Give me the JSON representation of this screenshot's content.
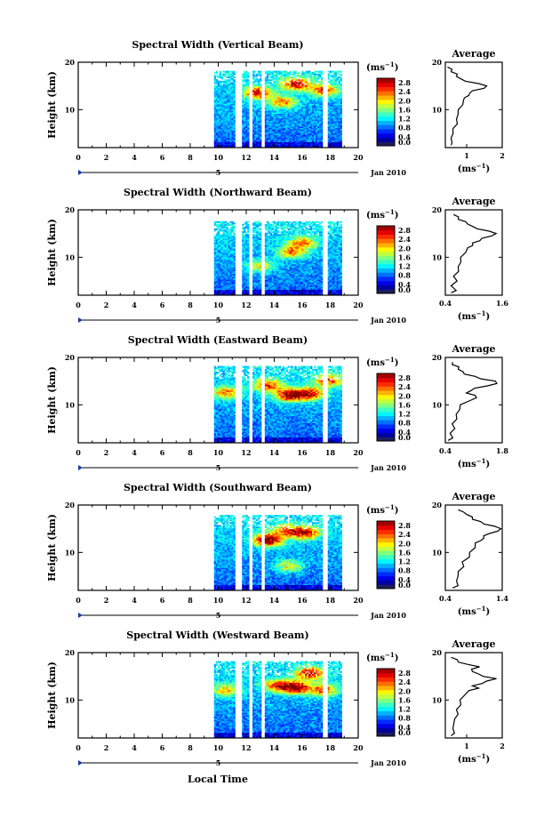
{
  "figure": {
    "xlabel": "Local Time",
    "date_label": "Jan 2010",
    "day_marker": "5",
    "colorbar_unit": "(ms",
    "colorbar_unit_exp": "−1",
    "colorbar_ticks": [
      "0.0",
      "0.4",
      "0.8",
      "1.2",
      "1.6",
      "2.0",
      "2.4",
      "2.8"
    ],
    "average_title": "Average",
    "average_unit": "(ms",
    "average_unit_exp": "−1"
  },
  "chart_data": [
    {
      "type": "heatmap",
      "title": "Spectral Width (Vertical Beam)",
      "ylabel": "Height (km)",
      "xlim": [
        0,
        20
      ],
      "ylim": [
        2,
        20
      ],
      "x_ticks": [
        "0",
        "2",
        "4",
        "6",
        "8",
        "10",
        "12",
        "14",
        "16",
        "18",
        "20"
      ],
      "y_ticks": [
        10,
        20
      ],
      "data_x_range": [
        9.7,
        18.8
      ],
      "data_y_top": 18,
      "gaps": [
        [
          11.2,
          11.7
        ],
        [
          12.2,
          12.4
        ],
        [
          13.0,
          13.3
        ],
        [
          17.4,
          17.8
        ]
      ],
      "hot_spots": [
        [
          12.8,
          13.5,
          0.7
        ],
        [
          15.5,
          15.3,
          0.75
        ],
        [
          17.5,
          14.0,
          0.6
        ],
        [
          14.5,
          11.5,
          0.55
        ]
      ],
      "colorbar": {
        "min": 0.0,
        "max": 3.0,
        "ticks": [
          0.0,
          0.4,
          0.8,
          1.2,
          1.6,
          2.0,
          2.4,
          2.8
        ]
      },
      "profile": {
        "title": "Average",
        "xlabel": "(ms-1)",
        "xlim": [
          0.4,
          2.0
        ],
        "x_tick_labels": [
          "1",
          "2"
        ],
        "x_tick_values": [
          1.0,
          2.0
        ],
        "heights": [
          2.5,
          3,
          4,
          5,
          6,
          7,
          8,
          9,
          10,
          11,
          12,
          12.5,
          13,
          13.5,
          14,
          14.5,
          15,
          15.5,
          16,
          16.5,
          17,
          17.5,
          18,
          18.5,
          19
        ],
        "values": [
          0.6,
          0.55,
          0.6,
          0.58,
          0.65,
          0.7,
          0.75,
          0.72,
          0.8,
          0.85,
          0.95,
          0.9,
          1.1,
          1.05,
          1.2,
          1.45,
          1.6,
          1.3,
          1.0,
          0.8,
          0.75,
          0.7,
          0.6,
          0.55,
          0.5
        ]
      }
    },
    {
      "type": "heatmap",
      "title": "Spectral Width (Northward Beam)",
      "ylabel": "Height (km)",
      "xlim": [
        0,
        20
      ],
      "ylim": [
        2,
        20
      ],
      "x_ticks": [
        "0",
        "2",
        "4",
        "6",
        "8",
        "10",
        "12",
        "14",
        "16",
        "18",
        "20"
      ],
      "y_ticks": [
        10,
        20
      ],
      "data_x_range": [
        9.7,
        18.8
      ],
      "data_y_top": 17.5,
      "gaps": [
        [
          11.2,
          11.7
        ],
        [
          12.2,
          12.4
        ],
        [
          13.0,
          13.3
        ],
        [
          17.4,
          17.8
        ]
      ],
      "hot_spots": [
        [
          15.2,
          11.0,
          0.55
        ],
        [
          16.0,
          13.0,
          0.5
        ],
        [
          13.0,
          8.0,
          0.45
        ]
      ],
      "colorbar": {
        "min": 0.0,
        "max": 3.0,
        "ticks": [
          0.0,
          0.4,
          0.8,
          1.2,
          1.6,
          2.0,
          2.4,
          2.8
        ]
      },
      "profile": {
        "title": "Average",
        "xlabel": "(ms-1)",
        "xlim": [
          0.4,
          1.6
        ],
        "x_tick_labels": [
          "0.4",
          "1.6"
        ],
        "x_tick_values": [
          0.4,
          1.6
        ],
        "heights": [
          2.5,
          3,
          4,
          5,
          6,
          7,
          8,
          9,
          10,
          11,
          12,
          12.5,
          13,
          13.5,
          14,
          14.5,
          15,
          15.5,
          16,
          16.5,
          17,
          17.5,
          18,
          18.5,
          19
        ],
        "values": [
          0.55,
          0.6,
          0.55,
          0.62,
          0.6,
          0.65,
          0.7,
          0.7,
          0.75,
          0.8,
          0.9,
          0.95,
          1.0,
          1.1,
          1.2,
          1.35,
          1.5,
          1.3,
          1.1,
          0.95,
          0.9,
          0.8,
          0.7,
          0.65,
          0.6
        ]
      }
    },
    {
      "type": "heatmap",
      "title": "Spectral Width (Eastward Beam)",
      "ylabel": "Height (km)",
      "xlim": [
        0,
        20
      ],
      "ylim": [
        2,
        20
      ],
      "x_ticks": [
        "0",
        "2",
        "4",
        "6",
        "8",
        "10",
        "12",
        "14",
        "16",
        "18",
        "20"
      ],
      "y_ticks": [
        10,
        20
      ],
      "data_x_range": [
        9.7,
        18.8
      ],
      "data_y_top": 18,
      "gaps": [
        [
          11.2,
          11.7
        ],
        [
          12.2,
          12.4
        ],
        [
          13.0,
          13.3
        ],
        [
          17.4,
          17.8
        ]
      ],
      "hot_spots": [
        [
          15.0,
          12.0,
          0.85
        ],
        [
          16.5,
          12.2,
          0.75
        ],
        [
          13.5,
          14.0,
          0.65
        ],
        [
          17.8,
          15.0,
          0.6
        ],
        [
          10.5,
          12.5,
          0.55
        ]
      ],
      "colorbar": {
        "min": 0.0,
        "max": 3.0,
        "ticks": [
          0.0,
          0.4,
          0.8,
          1.2,
          1.6,
          2.0,
          2.4,
          2.8
        ]
      },
      "profile": {
        "title": "Average",
        "xlabel": "(ms-1)",
        "xlim": [
          0.4,
          1.8
        ],
        "x_tick_labels": [
          "0.4",
          "1.8"
        ],
        "x_tick_values": [
          0.4,
          1.8
        ],
        "heights": [
          2.5,
          3,
          4,
          5,
          6,
          7,
          8,
          9,
          10,
          11,
          11.5,
          12,
          12.5,
          13,
          13.5,
          14,
          14.5,
          15,
          15.5,
          16,
          16.5,
          17,
          17.5,
          18,
          18.5,
          19
        ],
        "values": [
          0.5,
          0.55,
          0.55,
          0.6,
          0.6,
          0.65,
          0.7,
          0.72,
          0.8,
          1.0,
          1.2,
          1.1,
          0.95,
          1.0,
          1.15,
          1.4,
          1.7,
          1.6,
          1.3,
          1.1,
          0.9,
          0.8,
          0.75,
          0.7,
          0.6,
          0.55
        ]
      }
    },
    {
      "type": "heatmap",
      "title": "Spectral Width (Southward Beam)",
      "ylabel": "Height (km)",
      "xlim": [
        0,
        20
      ],
      "ylim": [
        2,
        20
      ],
      "x_ticks": [
        "0",
        "2",
        "4",
        "6",
        "8",
        "10",
        "12",
        "14",
        "16",
        "18",
        "20"
      ],
      "y_ticks": [
        10,
        20
      ],
      "data_x_range": [
        9.7,
        18.8
      ],
      "data_y_top": 17.8,
      "gaps": [
        [
          11.2,
          11.7
        ],
        [
          12.2,
          12.4
        ],
        [
          13.0,
          13.3
        ],
        [
          17.4,
          17.8
        ]
      ],
      "hot_spots": [
        [
          13.5,
          12.5,
          0.95
        ],
        [
          16.2,
          14.0,
          0.7
        ],
        [
          14.8,
          14.5,
          0.55
        ],
        [
          15.0,
          7.0,
          0.45
        ]
      ],
      "colorbar": {
        "min": 0.0,
        "max": 3.0,
        "ticks": [
          0.0,
          0.4,
          0.8,
          1.2,
          1.6,
          2.0,
          2.4,
          2.8
        ]
      },
      "profile": {
        "title": "Average",
        "xlabel": "(ms-1)",
        "xlim": [
          0.4,
          1.4
        ],
        "x_tick_labels": [
          "0.4",
          "1.4"
        ],
        "x_tick_values": [
          0.4,
          1.4
        ],
        "heights": [
          2.5,
          3,
          4,
          5,
          6,
          7,
          8,
          9,
          10,
          11,
          12,
          12.5,
          13,
          13.5,
          14,
          14.5,
          15,
          15.5,
          16,
          16.5,
          17,
          17.5,
          18,
          18.5,
          19
        ],
        "values": [
          0.55,
          0.6,
          0.62,
          0.6,
          0.65,
          0.7,
          0.72,
          0.8,
          0.85,
          0.9,
          0.95,
          1.0,
          1.1,
          1.05,
          1.2,
          1.3,
          1.4,
          1.25,
          1.1,
          1.0,
          0.9,
          0.85,
          0.8,
          0.7,
          0.65
        ]
      }
    },
    {
      "type": "heatmap",
      "title": "Spectral Width (Westward Beam)",
      "ylabel": "Height (km)",
      "xlim": [
        0,
        20
      ],
      "ylim": [
        2,
        20
      ],
      "x_ticks": [
        "0",
        "2",
        "4",
        "6",
        "8",
        "10",
        "12",
        "14",
        "16",
        "18",
        "20"
      ],
      "y_ticks": [
        10,
        20
      ],
      "data_x_range": [
        9.7,
        18.8
      ],
      "data_y_top": 18,
      "gaps": [
        [
          11.2,
          11.7
        ],
        [
          12.2,
          12.4
        ],
        [
          13.0,
          13.3
        ],
        [
          17.4,
          17.8
        ]
      ],
      "hot_spots": [
        [
          15.5,
          12.5,
          0.85
        ],
        [
          16.5,
          15.5,
          0.75
        ],
        [
          14.2,
          13.0,
          0.6
        ],
        [
          17.5,
          12.0,
          0.6
        ],
        [
          10.5,
          12.0,
          0.5
        ]
      ],
      "colorbar": {
        "min": 0.0,
        "max": 3.0,
        "ticks": [
          0.0,
          0.4,
          0.8,
          1.2,
          1.6,
          2.0,
          2.4,
          2.8
        ]
      },
      "profile": {
        "title": "Average",
        "xlabel": "(ms-1)",
        "xlim": [
          0.4,
          2.0
        ],
        "x_tick_labels": [
          "1",
          "2"
        ],
        "x_tick_values": [
          1.0,
          2.0
        ],
        "heights": [
          2.5,
          3,
          4,
          5,
          6,
          7,
          8,
          9,
          10,
          11,
          12,
          12.5,
          13,
          13.5,
          14,
          14.5,
          15,
          15.5,
          16,
          16.5,
          17,
          17.5,
          18,
          18.5,
          19
        ],
        "values": [
          0.6,
          0.62,
          0.65,
          0.6,
          0.7,
          0.72,
          0.75,
          0.8,
          0.85,
          0.9,
          1.1,
          1.3,
          1.2,
          1.4,
          1.6,
          1.8,
          1.5,
          1.3,
          1.2,
          1.1,
          1.4,
          1.0,
          0.8,
          0.7,
          0.6
        ]
      }
    }
  ]
}
